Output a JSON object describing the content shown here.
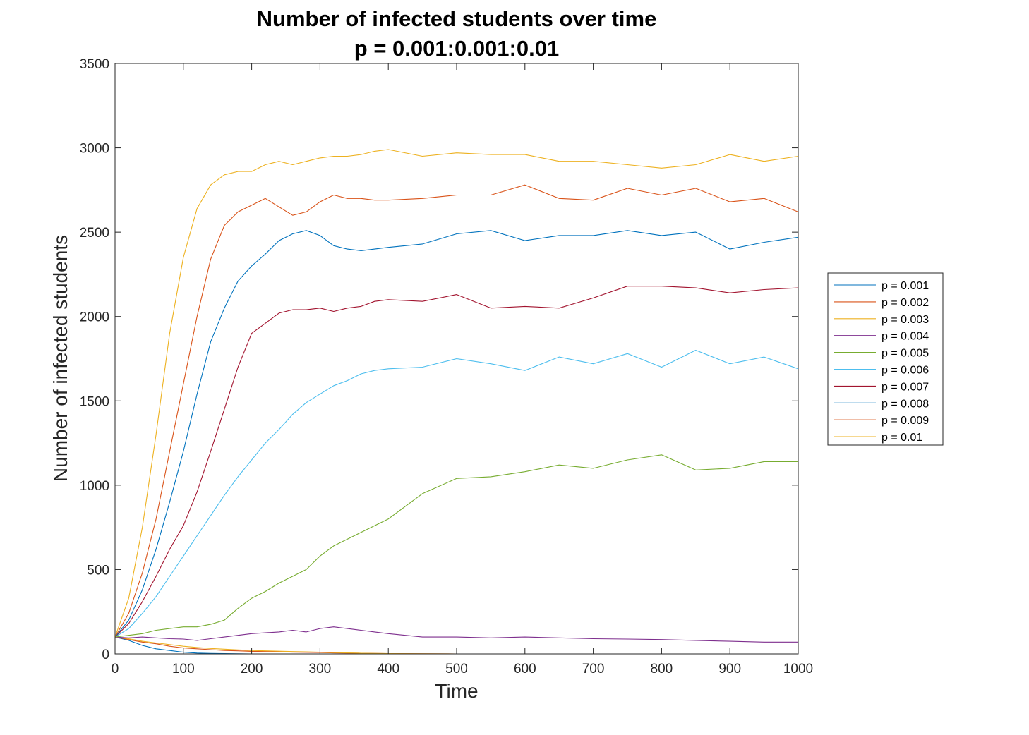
{
  "chart_data": {
    "type": "line",
    "title": "Number of infected students over time",
    "subtitle": "p = 0.001:0.001:0.01",
    "xlabel": "Time",
    "ylabel": "Number of infected students",
    "xlim": [
      0,
      1000
    ],
    "ylim": [
      0,
      3500
    ],
    "xticks": [
      0,
      100,
      200,
      300,
      400,
      500,
      600,
      700,
      800,
      900,
      1000
    ],
    "yticks": [
      0,
      500,
      1000,
      1500,
      2000,
      2500,
      3000,
      3500
    ],
    "grid": false,
    "legend_position": "outside-right",
    "x": [
      0,
      20,
      40,
      60,
      80,
      100,
      120,
      140,
      160,
      180,
      200,
      220,
      240,
      260,
      280,
      300,
      320,
      340,
      360,
      380,
      400,
      450,
      500,
      550,
      600,
      650,
      700,
      750,
      800,
      850,
      900,
      950,
      1000
    ],
    "series": [
      {
        "name": "p = 0.001",
        "color": "#0072BD",
        "values": [
          100,
          80,
          50,
          30,
          20,
          10,
          5,
          3,
          2,
          1,
          0,
          0,
          0,
          0,
          0,
          0,
          0,
          0,
          0,
          0,
          0,
          0,
          0,
          0,
          0,
          0,
          0,
          0,
          0,
          0,
          0,
          0,
          0
        ]
      },
      {
        "name": "p = 0.002",
        "color": "#D95319",
        "values": [
          100,
          85,
          70,
          60,
          45,
          35,
          30,
          25,
          20,
          18,
          15,
          14,
          12,
          10,
          9,
          8,
          6,
          5,
          4,
          3,
          2,
          1,
          0,
          0,
          0,
          0,
          0,
          0,
          0,
          0,
          0,
          0,
          0
        ]
      },
      {
        "name": "p = 0.003",
        "color": "#EDB120",
        "values": [
          100,
          90,
          75,
          65,
          55,
          45,
          38,
          32,
          28,
          24,
          20,
          18,
          16,
          14,
          12,
          10,
          8,
          6,
          4,
          3,
          2,
          1,
          0,
          0,
          0,
          0,
          0,
          0,
          0,
          0,
          0,
          0,
          0
        ]
      },
      {
        "name": "p = 0.004",
        "color": "#7E2F8E",
        "values": [
          100,
          95,
          100,
          95,
          90,
          88,
          80,
          90,
          100,
          110,
          120,
          125,
          130,
          140,
          130,
          150,
          160,
          150,
          140,
          130,
          120,
          100,
          100,
          95,
          100,
          95,
          90,
          88,
          85,
          80,
          75,
          70,
          70
        ]
      },
      {
        "name": "p = 0.005",
        "color": "#77AC30",
        "values": [
          100,
          110,
          120,
          140,
          150,
          160,
          160,
          175,
          200,
          270,
          330,
          370,
          420,
          460,
          500,
          580,
          640,
          680,
          720,
          760,
          800,
          950,
          1040,
          1050,
          1080,
          1120,
          1100,
          1150,
          1180,
          1090,
          1100,
          1140,
          1140
        ]
      },
      {
        "name": "p = 0.006",
        "color": "#4DBEEE",
        "values": [
          100,
          150,
          240,
          340,
          460,
          580,
          700,
          820,
          940,
          1050,
          1150,
          1250,
          1330,
          1420,
          1490,
          1540,
          1590,
          1620,
          1660,
          1680,
          1690,
          1700,
          1750,
          1720,
          1680,
          1760,
          1720,
          1780,
          1700,
          1800,
          1720,
          1760,
          1690
        ]
      },
      {
        "name": "p = 0.007",
        "color": "#A2142F",
        "values": [
          100,
          180,
          310,
          460,
          620,
          760,
          960,
          1200,
          1450,
          1700,
          1900,
          1960,
          2020,
          2040,
          2040,
          2050,
          2030,
          2050,
          2060,
          2090,
          2100,
          2090,
          2130,
          2050,
          2060,
          2050,
          2110,
          2180,
          2180,
          2170,
          2140,
          2160,
          2170
        ]
      },
      {
        "name": "p = 0.008",
        "color": "#0072BD",
        "values": [
          100,
          200,
          380,
          620,
          900,
          1200,
          1540,
          1850,
          2050,
          2210,
          2300,
          2370,
          2450,
          2490,
          2510,
          2480,
          2420,
          2400,
          2390,
          2400,
          2410,
          2430,
          2490,
          2510,
          2450,
          2480,
          2480,
          2510,
          2480,
          2500,
          2400,
          2440,
          2470
        ]
      },
      {
        "name": "p = 0.009",
        "color": "#D95319",
        "values": [
          100,
          240,
          480,
          800,
          1200,
          1600,
          2000,
          2340,
          2540,
          2620,
          2660,
          2700,
          2650,
          2600,
          2620,
          2680,
          2720,
          2700,
          2700,
          2690,
          2690,
          2700,
          2720,
          2720,
          2780,
          2700,
          2690,
          2760,
          2720,
          2760,
          2680,
          2700,
          2620
        ]
      },
      {
        "name": "p = 0.01",
        "color": "#EDB120",
        "values": [
          100,
          330,
          750,
          1300,
          1900,
          2350,
          2640,
          2780,
          2840,
          2860,
          2860,
          2900,
          2920,
          2900,
          2920,
          2940,
          2950,
          2950,
          2960,
          2980,
          2990,
          2950,
          2970,
          2960,
          2960,
          2920,
          2920,
          2900,
          2880,
          2900,
          2960,
          2920,
          2950
        ]
      }
    ]
  }
}
